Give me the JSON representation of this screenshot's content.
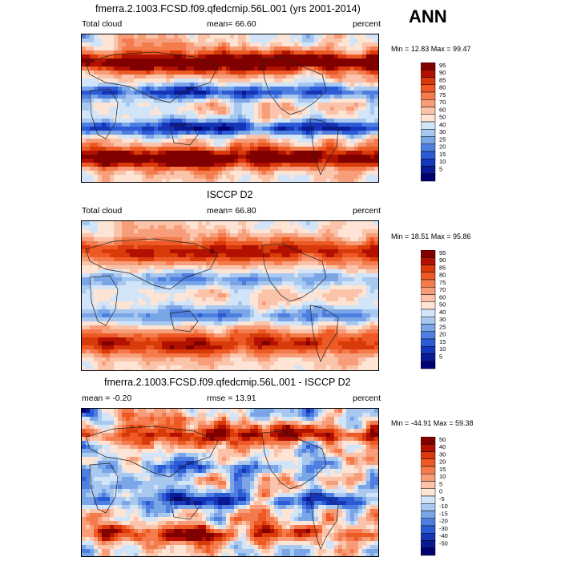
{
  "season": "ANN",
  "panels": [
    {
      "title": "fmerra.2.1003.FCSD.f09.qfedcmip.56L.001 (yrs 2001-2014)",
      "left_label": "Total cloud",
      "center_label": "mean=  66.60",
      "units": "percent",
      "minmax": "Min =  12.83 Max =  99.47",
      "colorbar": {
        "labels": [
          "95",
          "90",
          "85",
          "80",
          "75",
          "70",
          "60",
          "50",
          "40",
          "30",
          "25",
          "20",
          "15",
          "10",
          "5"
        ],
        "colors": [
          "#800000",
          "#B21000",
          "#D83A0A",
          "#EE5A25",
          "#F47B4B",
          "#F79D7A",
          "#FBC4AA",
          "#FDE4D4",
          "#D2E4F7",
          "#A8C8F0",
          "#7AA6E8",
          "#4E7FE0",
          "#2C5BD6",
          "#1536B8",
          "#0A1A95",
          "#000070"
        ]
      },
      "palette": "model"
    },
    {
      "title": "ISCCP D2",
      "left_label": "Total cloud",
      "center_label": "mean=  66.80",
      "units": "percent",
      "minmax": "Min =  18.51 Max =  95.86",
      "colorbar": {
        "labels": [
          "95",
          "90",
          "85",
          "80",
          "75",
          "70",
          "60",
          "50",
          "40",
          "30",
          "25",
          "20",
          "15",
          "10",
          "5"
        ],
        "colors": [
          "#800000",
          "#B21000",
          "#D83A0A",
          "#EE5A25",
          "#F47B4B",
          "#F79D7A",
          "#FBC4AA",
          "#FDE4D4",
          "#D2E4F7",
          "#A8C8F0",
          "#7AA6E8",
          "#4E7FE0",
          "#2C5BD6",
          "#1536B8",
          "#0A1A95",
          "#000070"
        ]
      },
      "palette": "obs"
    },
    {
      "title": "fmerra.2.1003.FCSD.f09.qfedcmip.56L.001 - ISCCP D2",
      "left_label": "mean =  -0.20",
      "center_label": "rmse =  13.91",
      "units": "percent",
      "minmax": "Min = -44.91 Max =  59.38",
      "colorbar": {
        "labels": [
          "50",
          "40",
          "30",
          "20",
          "15",
          "10",
          "5",
          "0",
          "-5",
          "-10",
          "-15",
          "-20",
          "-30",
          "-40",
          "-50"
        ],
        "colors": [
          "#800000",
          "#B21000",
          "#D83A0A",
          "#EE5A25",
          "#F47B4B",
          "#F79D7A",
          "#FBC4AA",
          "#FDE4D4",
          "#D2E4F7",
          "#A8C8F0",
          "#7AA6E8",
          "#4E7FE0",
          "#2C5BD6",
          "#1536B8",
          "#0A1A95",
          "#000070"
        ]
      },
      "palette": "diff"
    }
  ]
}
